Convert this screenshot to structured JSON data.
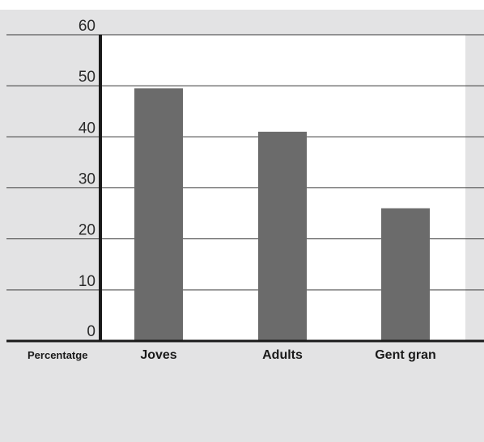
{
  "chart_data": {
    "type": "bar",
    "categories": [
      "Joves",
      "Adults",
      "Gent gran"
    ],
    "values": [
      49.5,
      41,
      26
    ],
    "y_ticks": [
      0,
      10,
      20,
      30,
      40,
      50,
      60
    ],
    "ylim": [
      0,
      60
    ],
    "ylabel": "Percentatge",
    "grid": true,
    "colors": {
      "bar": "#6b6b6b",
      "panel": "#e3e3e4",
      "plot": "#ffffff",
      "grid": "#3a3a3a",
      "axis": "#1a1a1a"
    }
  }
}
